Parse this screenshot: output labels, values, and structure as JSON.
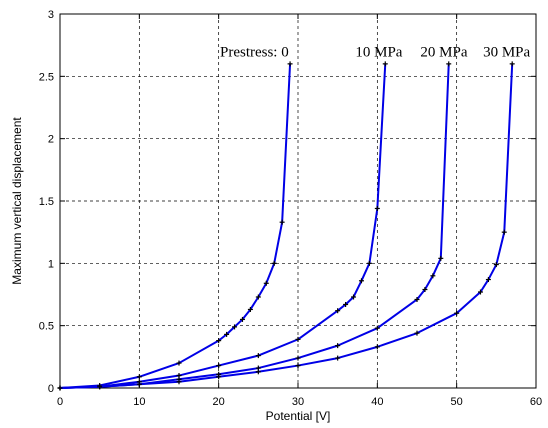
{
  "chart_data": {
    "type": "line",
    "title": "",
    "xlabel": "Potential [V]",
    "ylabel": "Maximum vertical displacement",
    "xlim": [
      0,
      60
    ],
    "ylim": [
      0,
      3
    ],
    "xticks": [
      0,
      10,
      20,
      30,
      40,
      50,
      60
    ],
    "yticks": [
      0,
      0.5,
      1,
      1.5,
      2,
      2.5,
      3
    ],
    "xtick_labels": [
      "0",
      "10",
      "20",
      "30",
      "40",
      "50",
      "60"
    ],
    "ytick_labels": [
      "0",
      "0.5",
      "1",
      "1.5",
      "2",
      "2.5",
      "3"
    ],
    "grid": true,
    "grid_style": "dashed",
    "line_color": "#0000e6",
    "marker_color": "#000000",
    "annotations": [
      {
        "text": "Prestress:  0",
        "x": 24.5,
        "y": 2.7
      },
      {
        "text": "10 MPa",
        "x": 40.2,
        "y": 2.7
      },
      {
        "text": "20 MPa",
        "x": 48.4,
        "y": 2.7
      },
      {
        "text": "30 MPa",
        "x": 56.3,
        "y": 2.7
      }
    ],
    "series": [
      {
        "x": [
          0,
          5,
          10,
          15,
          20,
          21,
          22,
          23,
          24,
          25,
          26,
          27,
          28,
          29
        ],
        "y": [
          0,
          0.02,
          0.09,
          0.2,
          0.38,
          0.43,
          0.49,
          0.55,
          0.63,
          0.73,
          0.84,
          1.0,
          1.33,
          2.6
        ]
      },
      {
        "x": [
          0,
          5,
          10,
          15,
          20,
          25,
          30,
          35,
          36,
          37,
          38,
          39,
          40,
          41
        ],
        "y": [
          0,
          0.01,
          0.05,
          0.1,
          0.18,
          0.26,
          0.39,
          0.62,
          0.67,
          0.73,
          0.86,
          1.0,
          1.44,
          2.6
        ]
      },
      {
        "x": [
          0,
          5,
          10,
          15,
          20,
          25,
          30,
          35,
          40,
          45,
          46,
          47,
          48,
          49
        ],
        "y": [
          0,
          0.01,
          0.03,
          0.07,
          0.11,
          0.16,
          0.24,
          0.34,
          0.48,
          0.71,
          0.79,
          0.9,
          1.04,
          2.6
        ]
      },
      {
        "x": [
          0,
          5,
          10,
          15,
          20,
          25,
          30,
          35,
          40,
          45,
          50,
          53,
          54,
          55,
          56,
          57
        ],
        "y": [
          0,
          0.01,
          0.03,
          0.05,
          0.09,
          0.13,
          0.18,
          0.24,
          0.33,
          0.44,
          0.6,
          0.77,
          0.87,
          0.99,
          1.25,
          2.6
        ]
      }
    ]
  }
}
